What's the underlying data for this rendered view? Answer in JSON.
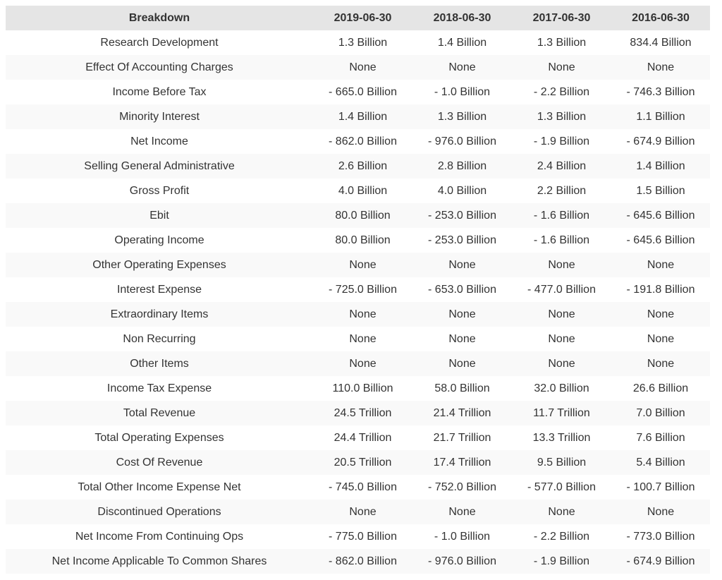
{
  "table": {
    "headers": [
      "Breakdown",
      "2019-06-30",
      "2018-06-30",
      "2017-06-30",
      "2016-06-30"
    ],
    "rows": [
      [
        "Research Development",
        "1.3 Billion",
        "1.4 Billion",
        "1.3 Billion",
        "834.4 Billion"
      ],
      [
        "Effect Of Accounting Charges",
        "None",
        "None",
        "None",
        "None"
      ],
      [
        "Income Before Tax",
        "- 665.0 Billion",
        "- 1.0 Billion",
        "- 2.2 Billion",
        "- 746.3 Billion"
      ],
      [
        "Minority Interest",
        "1.4 Billion",
        "1.3 Billion",
        "1.3 Billion",
        "1.1 Billion"
      ],
      [
        "Net Income",
        "- 862.0 Billion",
        "- 976.0 Billion",
        "- 1.9 Billion",
        "- 674.9 Billion"
      ],
      [
        "Selling General Administrative",
        "2.6 Billion",
        "2.8 Billion",
        "2.4 Billion",
        "1.4 Billion"
      ],
      [
        "Gross Profit",
        "4.0 Billion",
        "4.0 Billion",
        "2.2 Billion",
        "1.5 Billion"
      ],
      [
        "Ebit",
        "80.0 Billion",
        "- 253.0 Billion",
        "- 1.6 Billion",
        "- 645.6 Billion"
      ],
      [
        "Operating Income",
        "80.0 Billion",
        "- 253.0 Billion",
        "- 1.6 Billion",
        "- 645.6 Billion"
      ],
      [
        "Other Operating Expenses",
        "None",
        "None",
        "None",
        "None"
      ],
      [
        "Interest Expense",
        "- 725.0 Billion",
        "- 653.0 Billion",
        "- 477.0 Billion",
        "- 191.8 Billion"
      ],
      [
        "Extraordinary Items",
        "None",
        "None",
        "None",
        "None"
      ],
      [
        "Non Recurring",
        "None",
        "None",
        "None",
        "None"
      ],
      [
        "Other Items",
        "None",
        "None",
        "None",
        "None"
      ],
      [
        "Income Tax Expense",
        "110.0 Billion",
        "58.0 Billion",
        "32.0 Billion",
        "26.6 Billion"
      ],
      [
        "Total Revenue",
        "24.5 Trillion",
        "21.4 Trillion",
        "11.7 Trillion",
        "7.0 Billion"
      ],
      [
        "Total Operating Expenses",
        "24.4 Trillion",
        "21.7 Trillion",
        "13.3 Trillion",
        "7.6 Billion"
      ],
      [
        "Cost Of Revenue",
        "20.5 Trillion",
        "17.4 Trillion",
        "9.5 Billion",
        "5.4 Billion"
      ],
      [
        "Total Other Income Expense Net",
        "- 745.0 Billion",
        "- 752.0 Billion",
        "- 577.0 Billion",
        "- 100.7 Billion"
      ],
      [
        "Discontinued Operations",
        "None",
        "None",
        "None",
        "None"
      ],
      [
        "Net Income From Continuing Ops",
        "- 775.0 Billion",
        "- 1.0 Billion",
        "- 2.2 Billion",
        "- 773.0 Billion"
      ],
      [
        "Net Income Applicable To Common Shares",
        "- 862.0 Billion",
        "- 976.0 Billion",
        "- 1.9 Billion",
        "- 674.9 Billion"
      ]
    ]
  },
  "colors": {
    "header_bg": "#e5e5e5",
    "stripe_bg": "#f9f9f9",
    "text": "#333333"
  }
}
